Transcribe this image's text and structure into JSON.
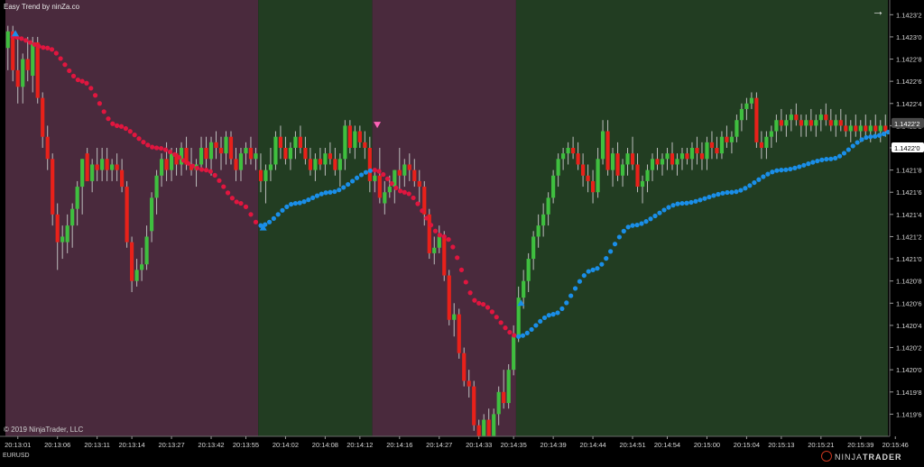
{
  "window": {
    "indicator_title": "Easy Trend by ninZa.co",
    "copyright": "© 2019 NinjaTrader, LLC",
    "instrument": "EURUSD",
    "brand_prefix": "NINJA",
    "brand_suffix": "TRADER",
    "brand_icon": "ninjatrader-logo-icon",
    "scroll_icon": "arrow-right-icon",
    "scroll_glyph": "→"
  },
  "colors": {
    "background": "#000000",
    "down_zone": "#4a2a3d",
    "up_zone": "#223d22",
    "bull_candle": "#3fbf3f",
    "bear_candle": "#e8211a",
    "trend_down": "#e0163f",
    "trend_up": "#1a8ee8",
    "sell_marker": "#ff63b8",
    "buy_marker": "#1a8ee8",
    "axis_text": "#d8d8d8"
  },
  "chart_data": {
    "type": "candlestick",
    "title": "",
    "ylim": [
      1.14194,
      1.14233
    ],
    "y_ticks": [
      "1.14232",
      "1.14230",
      "1.14228",
      "1.14226",
      "1.14224",
      "1.14222",
      "1.14220",
      "1.14218",
      "1.14216",
      "1.14214",
      "1.14212",
      "1.14210",
      "1.14208",
      "1.14206",
      "1.14204",
      "1.14202",
      "1.14200",
      "1.14198",
      "1.14196",
      "1.14194"
    ],
    "y_tick_labels": [
      "1.1423'2",
      "1.1423'0",
      "1.1422'8",
      "1.1422'6",
      "1.1422'4",
      "1.1422'2",
      "1.1422'0",
      "1.1421'8",
      "1.1421'6",
      "1.1421'4",
      "1.1421'2",
      "1.1421'0",
      "1.1420'8",
      "1.1420'6",
      "1.1420'4",
      "1.1420'2",
      "1.1420'0",
      "1.1419'8",
      "1.1419'6",
      "1.1419'4"
    ],
    "last_price": "1.1422'2",
    "indicator_price": "1.1422'0",
    "x_tick_labels": [
      "20:13:01",
      "20:13:06",
      "20:13:11",
      "20:13:14",
      "20:13:27",
      "20:13:42",
      "20:13:55",
      "20:14:02",
      "20:14:08",
      "20:14:12",
      "20:14:16",
      "20:14:27",
      "20:14:33",
      "20:14:35",
      "20:14:39",
      "20:14:44",
      "20:14:51",
      "20:14:54",
      "20:15:00",
      "20:15:04",
      "20:15:13",
      "20:15:21",
      "20:15:39",
      "20:15:46"
    ],
    "x_tick_bars": [
      2,
      10,
      18,
      25,
      33,
      41,
      48,
      56,
      64,
      71,
      79,
      87,
      95,
      102,
      110,
      118,
      126,
      133,
      141,
      149,
      156,
      164,
      172,
      179
    ],
    "zones": [
      {
        "trend": "down",
        "start_bar": 0,
        "end_bar": 51
      },
      {
        "trend": "up",
        "start_bar": 51,
        "end_bar": 74
      },
      {
        "trend": "down",
        "start_bar": 74,
        "end_bar": 103
      },
      {
        "trend": "up",
        "start_bar": 103,
        "end_bar": 182
      }
    ],
    "signals": [
      {
        "type": "buy",
        "bar": 1.5,
        "price": 1.142303
      },
      {
        "type": "sell",
        "bar": 74.5,
        "price": 1.142221
      },
      {
        "type": "buy",
        "bar": 51.5,
        "price": 1.142128
      },
      {
        "type": "buy",
        "bar": 103.5,
        "price": 1.14206
      }
    ],
    "trend_line_down": [
      [
        1,
        1.1423
      ],
      [
        8,
        1.14229
      ],
      [
        15,
        1.14226
      ],
      [
        22,
        1.14222
      ],
      [
        30,
        1.1422
      ],
      [
        40,
        1.14218
      ],
      [
        47,
        1.14215
      ],
      [
        51,
        1.14213
      ]
    ],
    "trend_line_up": [
      [
        51,
        1.14213
      ],
      [
        58,
        1.14215
      ],
      [
        65,
        1.14216
      ],
      [
        74,
        1.14218
      ]
    ],
    "trend_line_down2": [
      [
        74,
        1.14218
      ],
      [
        80,
        1.14216
      ],
      [
        88,
        1.14212
      ],
      [
        95,
        1.14206
      ],
      [
        103,
        1.14203
      ]
    ],
    "trend_line_up2": [
      [
        103,
        1.14203
      ],
      [
        110,
        1.14205
      ],
      [
        118,
        1.14209
      ],
      [
        126,
        1.14213
      ],
      [
        136,
        1.14215
      ],
      [
        146,
        1.14216
      ],
      [
        156,
        1.14218
      ],
      [
        166,
        1.14219
      ],
      [
        174,
        1.14221
      ],
      [
        182,
        1.14222
      ]
    ],
    "candles": [
      [
        1.14229,
        1.14231,
        1.14227,
        1.142305
      ],
      [
        1.142305,
        1.14231,
        1.14226,
        1.14227
      ],
      [
        1.14227,
        1.1423,
        1.14224,
        1.142255
      ],
      [
        1.142255,
        1.142285,
        1.14224,
        1.14228
      ],
      [
        1.14228,
        1.1423,
        1.14226,
        1.14227
      ],
      [
        1.142265,
        1.1423,
        1.14225,
        1.142295
      ],
      [
        1.142295,
        1.1423,
        1.14224,
        1.142245
      ],
      [
        1.142245,
        1.14225,
        1.1422,
        1.14221
      ],
      [
        1.14221,
        1.14222,
        1.14218,
        1.14219
      ],
      [
        1.14219,
        1.142195,
        1.14213,
        1.14214
      ],
      [
        1.14214,
        1.14215,
        1.14209,
        1.142115
      ],
      [
        1.142115,
        1.14213,
        1.1421,
        1.14212
      ],
      [
        1.142115,
        1.14214,
        1.142105,
        1.14213
      ],
      [
        1.14213,
        1.14215,
        1.14211,
        1.142145
      ],
      [
        1.142145,
        1.14217,
        1.14213,
        1.142165
      ],
      [
        1.142165,
        1.14219,
        1.14214,
        1.14219
      ],
      [
        1.142195,
        1.1422,
        1.14217,
        1.14217
      ],
      [
        1.14217,
        1.14219,
        1.14216,
        1.142185
      ],
      [
        1.142185,
        1.1422,
        1.14217,
        1.14218
      ],
      [
        1.14218,
        1.1422,
        1.14217,
        1.14219
      ],
      [
        1.14219,
        1.1422,
        1.14217,
        1.14218
      ],
      [
        1.14218,
        1.14219,
        1.14217,
        1.142185
      ],
      [
        1.142185,
        1.142195,
        1.14217,
        1.14218
      ],
      [
        1.14218,
        1.14219,
        1.14216,
        1.142165
      ],
      [
        1.142165,
        1.14217,
        1.14211,
        1.142115
      ],
      [
        1.142115,
        1.14212,
        1.14207,
        1.14208
      ],
      [
        1.14208,
        1.1421,
        1.142075,
        1.14209
      ],
      [
        1.14209,
        1.14211,
        1.14208,
        1.142095
      ],
      [
        1.142095,
        1.14213,
        1.14209,
        1.14212
      ],
      [
        1.142125,
        1.14216,
        1.142115,
        1.142155
      ],
      [
        1.142155,
        1.14218,
        1.14214,
        1.142175
      ],
      [
        1.142175,
        1.142195,
        1.142165,
        1.14219
      ],
      [
        1.14219,
        1.142205,
        1.14217,
        1.14218
      ],
      [
        1.14218,
        1.1422,
        1.14217,
        1.142195
      ],
      [
        1.142195,
        1.1422,
        1.142175,
        1.142185
      ],
      [
        1.142185,
        1.142205,
        1.142175,
        1.1422
      ],
      [
        1.1422,
        1.14221,
        1.14218,
        1.142185
      ],
      [
        1.142185,
        1.1422,
        1.142175,
        1.14218
      ],
      [
        1.14218,
        1.14219,
        1.142165,
        1.142185
      ],
      [
        1.142185,
        1.14221,
        1.14218,
        1.1422
      ],
      [
        1.1422,
        1.14221,
        1.14218,
        1.14219
      ],
      [
        1.14219,
        1.14221,
        1.142175,
        1.142205
      ],
      [
        1.142205,
        1.142215,
        1.14219,
        1.1422
      ],
      [
        1.1422,
        1.14221,
        1.14218,
        1.142195
      ],
      [
        1.142195,
        1.142215,
        1.142185,
        1.14221
      ],
      [
        1.14221,
        1.142215,
        1.142185,
        1.14219
      ],
      [
        1.14219,
        1.1422,
        1.14217,
        1.14218
      ],
      [
        1.14218,
        1.1422,
        1.14217,
        1.142195
      ],
      [
        1.142195,
        1.142205,
        1.142185,
        1.1422
      ],
      [
        1.1422,
        1.14221,
        1.142185,
        1.14219
      ],
      [
        1.14219,
        1.1422,
        1.14218,
        1.142195
      ],
      [
        1.14218,
        1.142195,
        1.14216,
        1.14217
      ],
      [
        1.14217,
        1.142185,
        1.14215,
        1.14218
      ],
      [
        1.14218,
        1.1422,
        1.14217,
        1.142185
      ],
      [
        1.142185,
        1.142215,
        1.14218,
        1.14221
      ],
      [
        1.14221,
        1.14222,
        1.14219,
        1.1422
      ],
      [
        1.1422,
        1.14221,
        1.142185,
        1.14219
      ],
      [
        1.14219,
        1.142205,
        1.14218,
        1.1422
      ],
      [
        1.1422,
        1.142215,
        1.14219,
        1.14221
      ],
      [
        1.14221,
        1.14222,
        1.142195,
        1.1422
      ],
      [
        1.1422,
        1.14221,
        1.142185,
        1.14219
      ],
      [
        1.14219,
        1.1422,
        1.142175,
        1.14218
      ],
      [
        1.14218,
        1.142195,
        1.14217,
        1.14219
      ],
      [
        1.14219,
        1.1422,
        1.14218,
        1.142185
      ],
      [
        1.142185,
        1.1422,
        1.142175,
        1.142195
      ],
      [
        1.142195,
        1.142205,
        1.142185,
        1.14219
      ],
      [
        1.14219,
        1.1422,
        1.142175,
        1.14218
      ],
      [
        1.14218,
        1.142195,
        1.142165,
        1.14219
      ],
      [
        1.14219,
        1.142225,
        1.14218,
        1.14222
      ],
      [
        1.14222,
        1.142225,
        1.142195,
        1.1422
      ],
      [
        1.1422,
        1.14222,
        1.14219,
        1.142215
      ],
      [
        1.142215,
        1.14222,
        1.1422,
        1.142205
      ],
      [
        1.142205,
        1.142215,
        1.14219,
        1.1422
      ],
      [
        1.1422,
        1.14221,
        1.14216,
        1.14217
      ],
      [
        1.14217,
        1.14218,
        1.14216,
        1.142175
      ],
      [
        1.142175,
        1.1422,
        1.14215,
        1.142155
      ],
      [
        1.14215,
        1.14217,
        1.14214,
        1.14216
      ],
      [
        1.14216,
        1.142175,
        1.142155,
        1.142165
      ],
      [
        1.142165,
        1.14218,
        1.14215,
        1.14218
      ],
      [
        1.14218,
        1.1422,
        1.14216,
        1.142175
      ],
      [
        1.142175,
        1.14219,
        1.142165,
        1.142185
      ],
      [
        1.142185,
        1.142195,
        1.14217,
        1.14218
      ],
      [
        1.14218,
        1.14219,
        1.142165,
        1.14217
      ],
      [
        1.14217,
        1.14218,
        1.14215,
        1.142165
      ],
      [
        1.142165,
        1.14217,
        1.14213,
        1.14214
      ],
      [
        1.14214,
        1.142145,
        1.1421,
        1.142105
      ],
      [
        1.142105,
        1.14212,
        1.142095,
        1.14211
      ],
      [
        1.14211,
        1.14213,
        1.142105,
        1.14212
      ],
      [
        1.14212,
        1.142125,
        1.14208,
        1.142085
      ],
      [
        1.142085,
        1.14209,
        1.14204,
        1.142045
      ],
      [
        1.142045,
        1.14206,
        1.14203,
        1.14205
      ],
      [
        1.14205,
        1.142055,
        1.14201,
        1.142015
      ],
      [
        1.142015,
        1.14202,
        1.141985,
        1.14199
      ],
      [
        1.14199,
        1.142,
        1.141975,
        1.141985
      ],
      [
        1.141985,
        1.14199,
        1.141945,
        1.14195
      ],
      [
        1.14195,
        1.141955,
        1.14193,
        1.141935
      ],
      [
        1.141935,
        1.14196,
        1.14193,
        1.141955
      ],
      [
        1.141955,
        1.141965,
        1.141935,
        1.14194
      ],
      [
        1.14194,
        1.141965,
        1.141935,
        1.14196
      ],
      [
        1.14196,
        1.141985,
        1.14195,
        1.14198
      ],
      [
        1.14198,
        1.142,
        1.141965,
        1.14197
      ],
      [
        1.14197,
        1.142005,
        1.141965,
        1.142
      ],
      [
        1.142,
        1.14204,
        1.141995,
        1.14203
      ],
      [
        1.14203,
        1.142075,
        1.142025,
        1.142065
      ],
      [
        1.142065,
        1.14209,
        1.142055,
        1.14208
      ],
      [
        1.14208,
        1.142105,
        1.14207,
        1.1421
      ],
      [
        1.1421,
        1.142125,
        1.14209,
        1.14212
      ],
      [
        1.14212,
        1.14214,
        1.14211,
        1.14213
      ],
      [
        1.14213,
        1.14215,
        1.14212,
        1.14214
      ],
      [
        1.14214,
        1.14216,
        1.14213,
        1.142155
      ],
      [
        1.142155,
        1.14218,
        1.14215,
        1.142175
      ],
      [
        1.142175,
        1.142195,
        1.142165,
        1.14219
      ],
      [
        1.14219,
        1.1422,
        1.14218,
        1.142195
      ],
      [
        1.142195,
        1.142205,
        1.142185,
        1.1422
      ],
      [
        1.1422,
        1.14221,
        1.14219,
        1.142195
      ],
      [
        1.142195,
        1.142205,
        1.14218,
        1.142185
      ],
      [
        1.142185,
        1.142195,
        1.142165,
        1.142175
      ],
      [
        1.142175,
        1.142185,
        1.14216,
        1.14217
      ],
      [
        1.14217,
        1.14218,
        1.14215,
        1.14216
      ],
      [
        1.14216,
        1.1422,
        1.142155,
        1.14219
      ],
      [
        1.14219,
        1.142225,
        1.142185,
        1.142215
      ],
      [
        1.142215,
        1.142225,
        1.142175,
        1.14218
      ],
      [
        1.14218,
        1.1422,
        1.142165,
        1.142195
      ],
      [
        1.142195,
        1.142205,
        1.14217,
        1.142175
      ],
      [
        1.142175,
        1.14219,
        1.142165,
        1.142185
      ],
      [
        1.142185,
        1.1422,
        1.142175,
        1.142195
      ],
      [
        1.142195,
        1.14221,
        1.14218,
        1.142185
      ],
      [
        1.142185,
        1.142195,
        1.14216,
        1.142165
      ],
      [
        1.142165,
        1.142175,
        1.14215,
        1.14217
      ],
      [
        1.14217,
        1.142185,
        1.14216,
        1.14218
      ],
      [
        1.14218,
        1.142195,
        1.14217,
        1.14219
      ],
      [
        1.14219,
        1.1422,
        1.14218,
        1.142185
      ],
      [
        1.142185,
        1.142195,
        1.142175,
        1.14219
      ],
      [
        1.14219,
        1.1422,
        1.14218,
        1.142195
      ],
      [
        1.142195,
        1.142205,
        1.14218,
        1.142185
      ],
      [
        1.142185,
        1.142195,
        1.142175,
        1.14219
      ],
      [
        1.14219,
        1.1422,
        1.14218,
        1.142195
      ],
      [
        1.142195,
        1.1422,
        1.142185,
        1.14219
      ],
      [
        1.14219,
        1.142205,
        1.14218,
        1.1422
      ],
      [
        1.1422,
        1.14221,
        1.142185,
        1.142195
      ],
      [
        1.142195,
        1.142205,
        1.14218,
        1.14219
      ],
      [
        1.14219,
        1.14221,
        1.14218,
        1.142205
      ],
      [
        1.142205,
        1.142215,
        1.14219,
        1.1422
      ],
      [
        1.1422,
        1.14221,
        1.14219,
        1.142195
      ],
      [
        1.142195,
        1.142215,
        1.14219,
        1.14221
      ],
      [
        1.14221,
        1.14222,
        1.1422,
        1.142205
      ],
      [
        1.142205,
        1.142215,
        1.142195,
        1.14221
      ],
      [
        1.14221,
        1.14223,
        1.142205,
        1.142225
      ],
      [
        1.142225,
        1.14224,
        1.142215,
        1.142235
      ],
      [
        1.142235,
        1.142245,
        1.142225,
        1.14224
      ],
      [
        1.14224,
        1.14225,
        1.142235,
        1.142245
      ],
      [
        1.142245,
        1.14225,
        1.1422,
        1.142205
      ],
      [
        1.142205,
        1.142215,
        1.14219,
        1.1422
      ],
      [
        1.1422,
        1.142215,
        1.14219,
        1.14221
      ],
      [
        1.14221,
        1.14222,
        1.1422,
        1.142215
      ],
      [
        1.142215,
        1.14223,
        1.142205,
        1.142225
      ],
      [
        1.142225,
        1.142235,
        1.142215,
        1.14222
      ],
      [
        1.14222,
        1.14223,
        1.14221,
        1.142225
      ],
      [
        1.142225,
        1.142235,
        1.142215,
        1.14223
      ],
      [
        1.14223,
        1.14224,
        1.14222,
        1.142225
      ],
      [
        1.142225,
        1.14223,
        1.14221,
        1.14222
      ],
      [
        1.14222,
        1.14223,
        1.14221,
        1.142225
      ],
      [
        1.142225,
        1.142235,
        1.142215,
        1.14222
      ],
      [
        1.14222,
        1.14223,
        1.14221,
        1.142225
      ],
      [
        1.142225,
        1.142235,
        1.142215,
        1.14223
      ],
      [
        1.14223,
        1.14224,
        1.14222,
        1.142225
      ],
      [
        1.142225,
        1.142235,
        1.142215,
        1.14222
      ],
      [
        1.14222,
        1.14223,
        1.14221,
        1.142225
      ],
      [
        1.142225,
        1.142235,
        1.142215,
        1.14222
      ],
      [
        1.14222,
        1.14223,
        1.14221,
        1.142215
      ],
      [
        1.142215,
        1.142225,
        1.142205,
        1.14222
      ],
      [
        1.14222,
        1.14223,
        1.14221,
        1.142215
      ],
      [
        1.142215,
        1.142225,
        1.142205,
        1.14222
      ],
      [
        1.14222,
        1.14223,
        1.14221,
        1.142215
      ],
      [
        1.142215,
        1.142225,
        1.142205,
        1.14222
      ],
      [
        1.14222,
        1.14223,
        1.14221,
        1.142215
      ],
      [
        1.142215,
        1.142225,
        1.142205,
        1.14222
      ],
      [
        1.14222,
        1.14223,
        1.14221,
        1.142215
      ]
    ]
  }
}
